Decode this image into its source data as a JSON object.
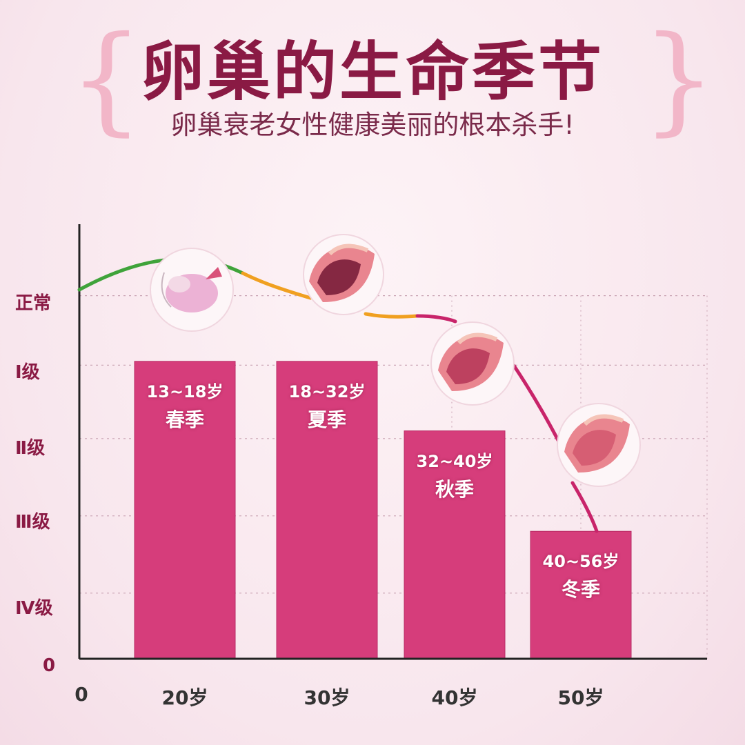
{
  "title": "卵巢的生命季节",
  "subtitle": "卵巢衰老女性健康美丽的根本杀手!",
  "colors": {
    "bar": "#d63d7b",
    "bar_edge": "#b82a64",
    "axis": "#222222",
    "curve_green": "#3fa33a",
    "curve_orange": "#f0a020",
    "curve_red": "#c8246a",
    "grid": "#c9a3b3"
  },
  "chart_data": {
    "type": "bar",
    "title": "卵巢的生命季节",
    "subtitle": "卵巢衰老女性健康美丽的根本杀手!",
    "y_levels": [
      "正常",
      "Ⅰ级",
      "Ⅱ级",
      "Ⅲ级",
      "Ⅳ级",
      "0"
    ],
    "x_origin_label": "0",
    "categories": [
      "20岁",
      "30岁",
      "40岁",
      "50岁"
    ],
    "bars": [
      {
        "category": "20岁",
        "age_range": "13~18岁",
        "season": "春季",
        "level": "Ⅰ级"
      },
      {
        "category": "30岁",
        "age_range": "18~32岁",
        "season": "夏季",
        "level": "Ⅰ级"
      },
      {
        "category": "40岁",
        "age_range": "32~40岁",
        "season": "秋季",
        "level": "Ⅱ级"
      },
      {
        "category": "50岁",
        "age_range": "40~56岁",
        "season": "冬季",
        "level": "Ⅲ级"
      }
    ],
    "bar_values": [
      3.85,
      3.85,
      2.95,
      1.65
    ],
    "level_values": {
      "正常": 4.7,
      "Ⅰ级": 3.8,
      "Ⅱ级": 2.85,
      "Ⅲ级": 1.85,
      "Ⅳ级": 0.85,
      "0": 0
    },
    "trend_icons": [
      "ovary-spring-icon",
      "ovary-summer-icon",
      "ovary-autumn-icon",
      "ovary-winter-icon"
    ],
    "grid": true
  }
}
